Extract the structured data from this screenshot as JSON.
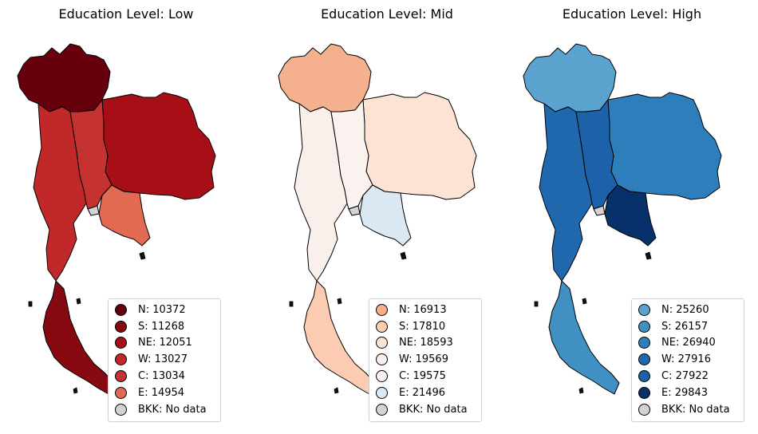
{
  "panels": [
    {
      "title": "Education Level: Low",
      "colors": {
        "N": "#67000d",
        "S": "#860811",
        "NE": "#a50f15",
        "W": "#c0282a",
        "C": "#c53232",
        "E": "#e26a52",
        "BKK": "#d3d3d3"
      },
      "legend": [
        {
          "region": "N",
          "label": "N: 10372",
          "color": "#67000d"
        },
        {
          "region": "S",
          "label": "S: 11268",
          "color": "#860811"
        },
        {
          "region": "NE",
          "label": "NE: 12051",
          "color": "#a50f15"
        },
        {
          "region": "W",
          "label": "W: 13027",
          "color": "#c0282a"
        },
        {
          "region": "C",
          "label": "C: 13034",
          "color": "#c53232"
        },
        {
          "region": "E",
          "label": "E: 14954",
          "color": "#e26a52"
        },
        {
          "region": "BKK",
          "label": "BKK: No data",
          "color": "#d3d3d3"
        }
      ]
    },
    {
      "title": "Education Level: Mid",
      "colors": {
        "N": "#f5b08e",
        "S": "#fbcbb2",
        "NE": "#fde3d4",
        "W": "#faf0eb",
        "C": "#f9f2ee",
        "E": "#dae8f3",
        "BKK": "#d3d3d3"
      },
      "legend": [
        {
          "region": "N",
          "label": "N: 16913",
          "color": "#f5b08e"
        },
        {
          "region": "S",
          "label": "S: 17810",
          "color": "#fbcbb2"
        },
        {
          "region": "NE",
          "label": "NE: 18593",
          "color": "#fde3d4"
        },
        {
          "region": "W",
          "label": "W: 19569",
          "color": "#faf0eb"
        },
        {
          "region": "C",
          "label": "C: 19575",
          "color": "#f9f2ee"
        },
        {
          "region": "E",
          "label": "E: 21496",
          "color": "#dae8f3"
        },
        {
          "region": "BKK",
          "label": "BKK: No data",
          "color": "#d3d3d3"
        }
      ]
    },
    {
      "title": "Education Level: High",
      "colors": {
        "N": "#5ba3cf",
        "S": "#4190c4",
        "NE": "#2e7ebc",
        "W": "#1f68ad",
        "C": "#1c62a8",
        "E": "#08306b",
        "BKK": "#d3d3d3"
      },
      "legend": [
        {
          "region": "N",
          "label": "N: 25260",
          "color": "#5ba3cf"
        },
        {
          "region": "S",
          "label": "S: 26157",
          "color": "#4190c4"
        },
        {
          "region": "NE",
          "label": "NE: 26940",
          "color": "#2e7ebc"
        },
        {
          "region": "W",
          "label": "W: 27916",
          "color": "#1f68ad"
        },
        {
          "region": "C",
          "label": "C: 27922",
          "color": "#1c62a8"
        },
        {
          "region": "E",
          "label": "E: 29843",
          "color": "#08306b"
        },
        {
          "region": "BKK",
          "label": "BKK: No data",
          "color": "#d3d3d3"
        }
      ]
    }
  ]
}
